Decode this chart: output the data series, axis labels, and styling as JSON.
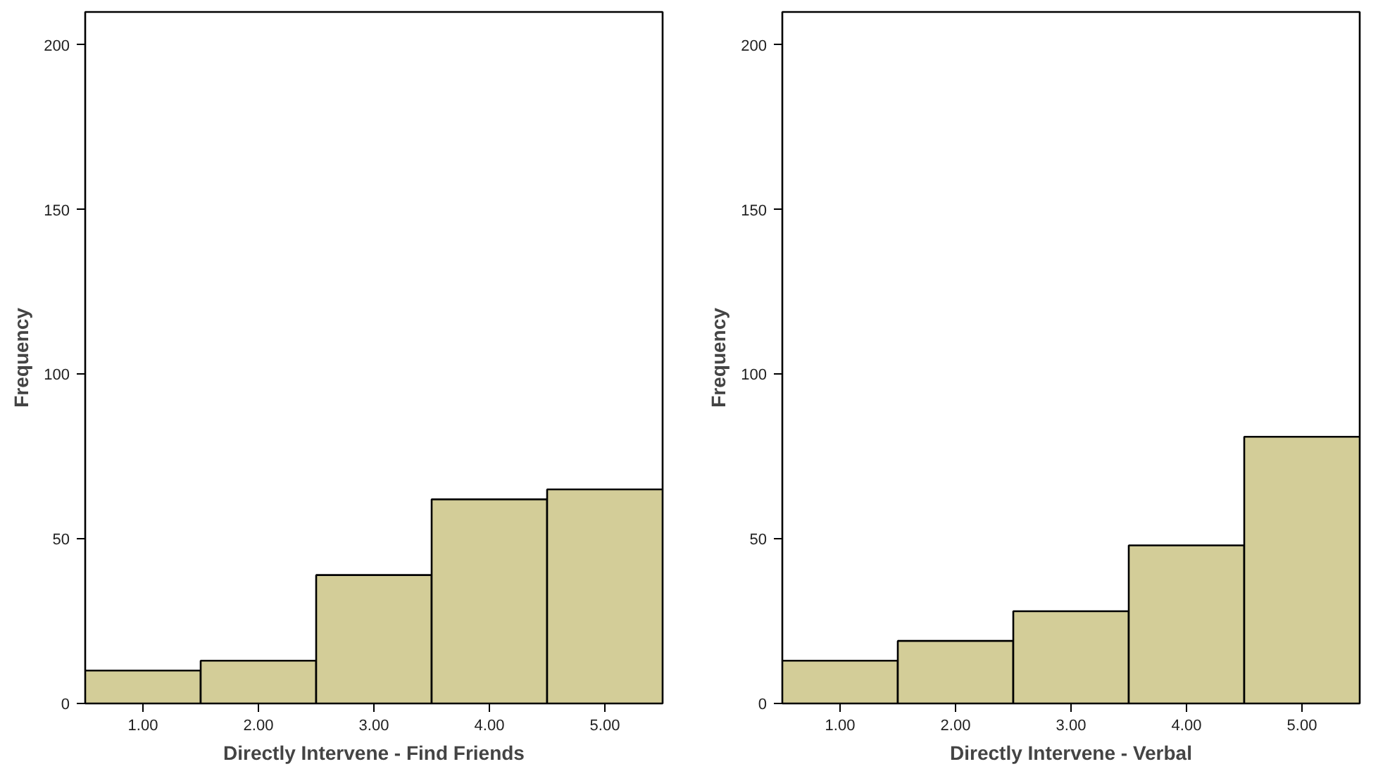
{
  "chart_data": [
    {
      "type": "histogram",
      "xlabel": "Directly Intervene - Find Friends",
      "ylabel": "Frequency",
      "bins": [
        0.5,
        1.5,
        2.5,
        3.5,
        4.5,
        5.5
      ],
      "values": [
        10,
        13,
        39,
        62,
        65
      ],
      "color": "#d3cd98",
      "xlim": [
        0.5,
        5.5
      ],
      "xticks": [
        {
          "value": 1,
          "label": "1.00"
        },
        {
          "value": 2,
          "label": "2.00"
        },
        {
          "value": 3,
          "label": "3.00"
        },
        {
          "value": 4,
          "label": "4.00"
        },
        {
          "value": 5,
          "label": "5.00"
        }
      ],
      "ylim": [
        0,
        210
      ],
      "yticks": [
        0,
        50,
        100,
        150,
        200
      ],
      "grid": false
    },
    {
      "type": "histogram",
      "xlabel": "Directly Intervene - Verbal",
      "ylabel": "Frequency",
      "bins": [
        0.5,
        1.5,
        2.5,
        3.5,
        4.5,
        5.5
      ],
      "values": [
        13,
        19,
        28,
        48,
        81
      ],
      "color": "#d3cd98",
      "xlim": [
        0.5,
        5.5
      ],
      "xticks": [
        {
          "value": 1,
          "label": "1.00"
        },
        {
          "value": 2,
          "label": "2.00"
        },
        {
          "value": 3,
          "label": "3.00"
        },
        {
          "value": 4,
          "label": "4.00"
        },
        {
          "value": 5,
          "label": "5.00"
        }
      ],
      "ylim": [
        0,
        210
      ],
      "yticks": [
        0,
        50,
        100,
        150,
        200
      ],
      "grid": false
    }
  ]
}
